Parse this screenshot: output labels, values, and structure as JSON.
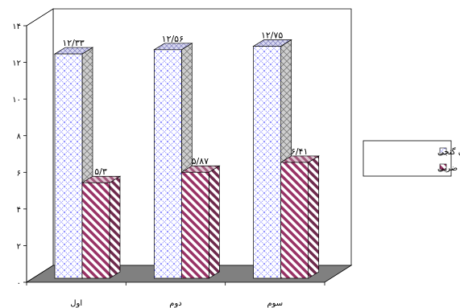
{
  "chart_data": {
    "type": "bar",
    "title": "",
    "xlabel": "",
    "ylabel": "",
    "ylim": [
      0,
      14
    ],
    "yticks": [
      0,
      2,
      4,
      6,
      8,
      10,
      12,
      14
    ],
    "ytick_labels": [
      "۰",
      "۲",
      "۴",
      "۶",
      "۸",
      "۱۰",
      "۱۲",
      "۱۴"
    ],
    "categories": [
      "اول",
      "دوم",
      "سوم"
    ],
    "three_d": true,
    "grid": false,
    "legend_position": "right",
    "series": [
      {
        "name": "کمّی‌سازی درون گنجی",
        "values": [
          12.33,
          12.56,
          12.75
        ],
        "labels": [
          "۱۲/۳۳",
          "۱۲/۵۶",
          "۱۲/۷۵"
        ],
        "pattern": "crosshatch",
        "color": "#9999ff",
        "fill": "#ffffff"
      },
      {
        "name": "گروه‌های ضربی",
        "values": [
          5.3,
          5.87,
          6.41
        ],
        "labels": [
          "۵/۳",
          "۵/۸۷",
          "۶/۴۱"
        ],
        "pattern": "diagonal-stripes",
        "color": "#993366",
        "fill": "#ffffff"
      }
    ],
    "floor_color": "#808080"
  }
}
